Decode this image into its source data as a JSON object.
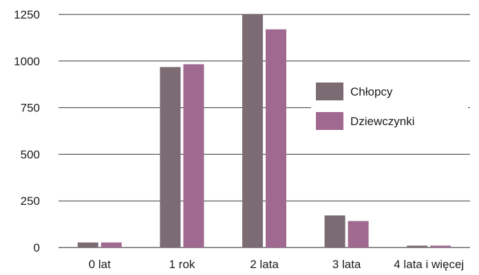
{
  "chart_data": {
    "type": "bar",
    "categories": [
      "0 lat",
      "1 rok",
      "2 lata",
      "3 lata",
      "4 lata i więcej"
    ],
    "series": [
      {
        "name": "Chłopcy",
        "values": [
          27,
          968,
          1250,
          172,
          10
        ],
        "color": "#7b6c74"
      },
      {
        "name": "Dziewczynki",
        "values": [
          27,
          983,
          1170,
          142,
          10
        ],
        "color": "#a0698f"
      }
    ],
    "yticks": [
      "0",
      "250",
      "500",
      "750",
      "1000",
      "1250"
    ],
    "ylim": [
      0,
      1250
    ],
    "grid": "horizontal",
    "legend": "right"
  }
}
